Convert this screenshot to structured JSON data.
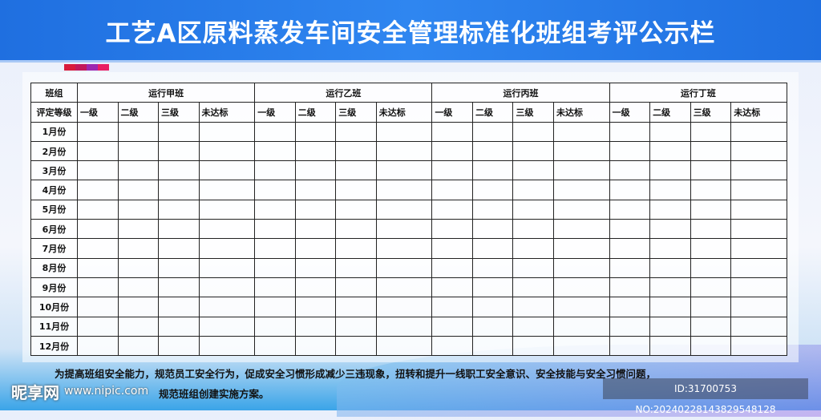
{
  "title": "工艺A区原料蒸发车间安全管理标准化班组考评公示栏",
  "colors": {
    "title_bar": "#2f86f0",
    "deco": [
      "#d81b3b",
      "#c2185b",
      "#7b1fa2",
      "#e91e63"
    ]
  },
  "table": {
    "corner_top": "班组",
    "corner_bottom": "评定等级",
    "teams": [
      "运行甲班",
      "运行乙班",
      "运行丙班",
      "运行丁班"
    ],
    "levels": [
      "一级",
      "二级",
      "三级",
      "未达标"
    ],
    "months": [
      "1月份",
      "2月份",
      "3月份",
      "4月份",
      "5月份",
      "6月份",
      "7月份",
      "8月份",
      "9月份",
      "10月份",
      "11月份",
      "12月份"
    ]
  },
  "footer": {
    "line1": "为提高班组安全能力，规范员工安全行为，促成安全习惯形成减少三违现象，扭转和提升一线职工安全意识、安全技能与安全习惯问题，",
    "line2": "规范班组创建实施方案。"
  },
  "watermark": {
    "logo": "昵享网",
    "url": "www.nipic.com",
    "id": "ID:31700753 NO:20240228143829548128"
  }
}
